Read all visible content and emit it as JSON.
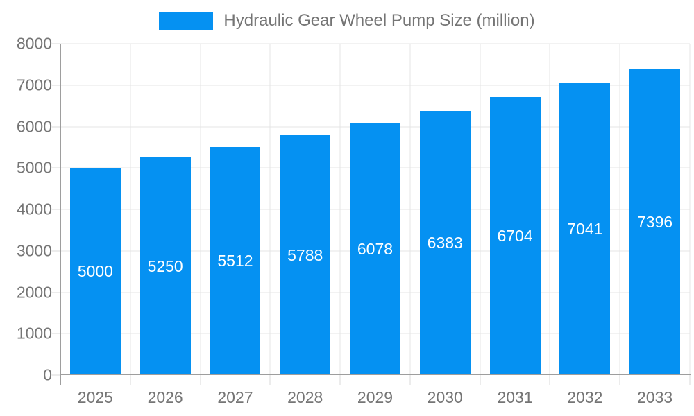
{
  "legend": {
    "label": "Hydraulic Gear Wheel Pump Size (million)"
  },
  "colors": {
    "bar": "#0591f2",
    "text": "#757575",
    "axis_line": "#9e9e9e",
    "gridline": "#e4e4e4",
    "tick": "#d9d9d9",
    "bar_label": "#ffffff",
    "background": "#ffffff"
  },
  "chart_data": {
    "type": "bar",
    "title": "Hydraulic Gear Wheel Pump Size (million)",
    "series_name": "Hydraulic Gear Wheel Pump Size (million)",
    "categories": [
      "2025",
      "2026",
      "2027",
      "2028",
      "2029",
      "2030",
      "2031",
      "2032",
      "2033"
    ],
    "values": [
      5000,
      5250,
      5512,
      5788,
      6078,
      6383,
      6704,
      7041,
      7396
    ],
    "xlabel": "",
    "ylabel": "",
    "ylim": [
      0,
      8000
    ],
    "ytick_step": 1000,
    "grid": true,
    "legend_position": "top",
    "value_labels": "inside-center",
    "bar_band_fraction": 0.725
  }
}
